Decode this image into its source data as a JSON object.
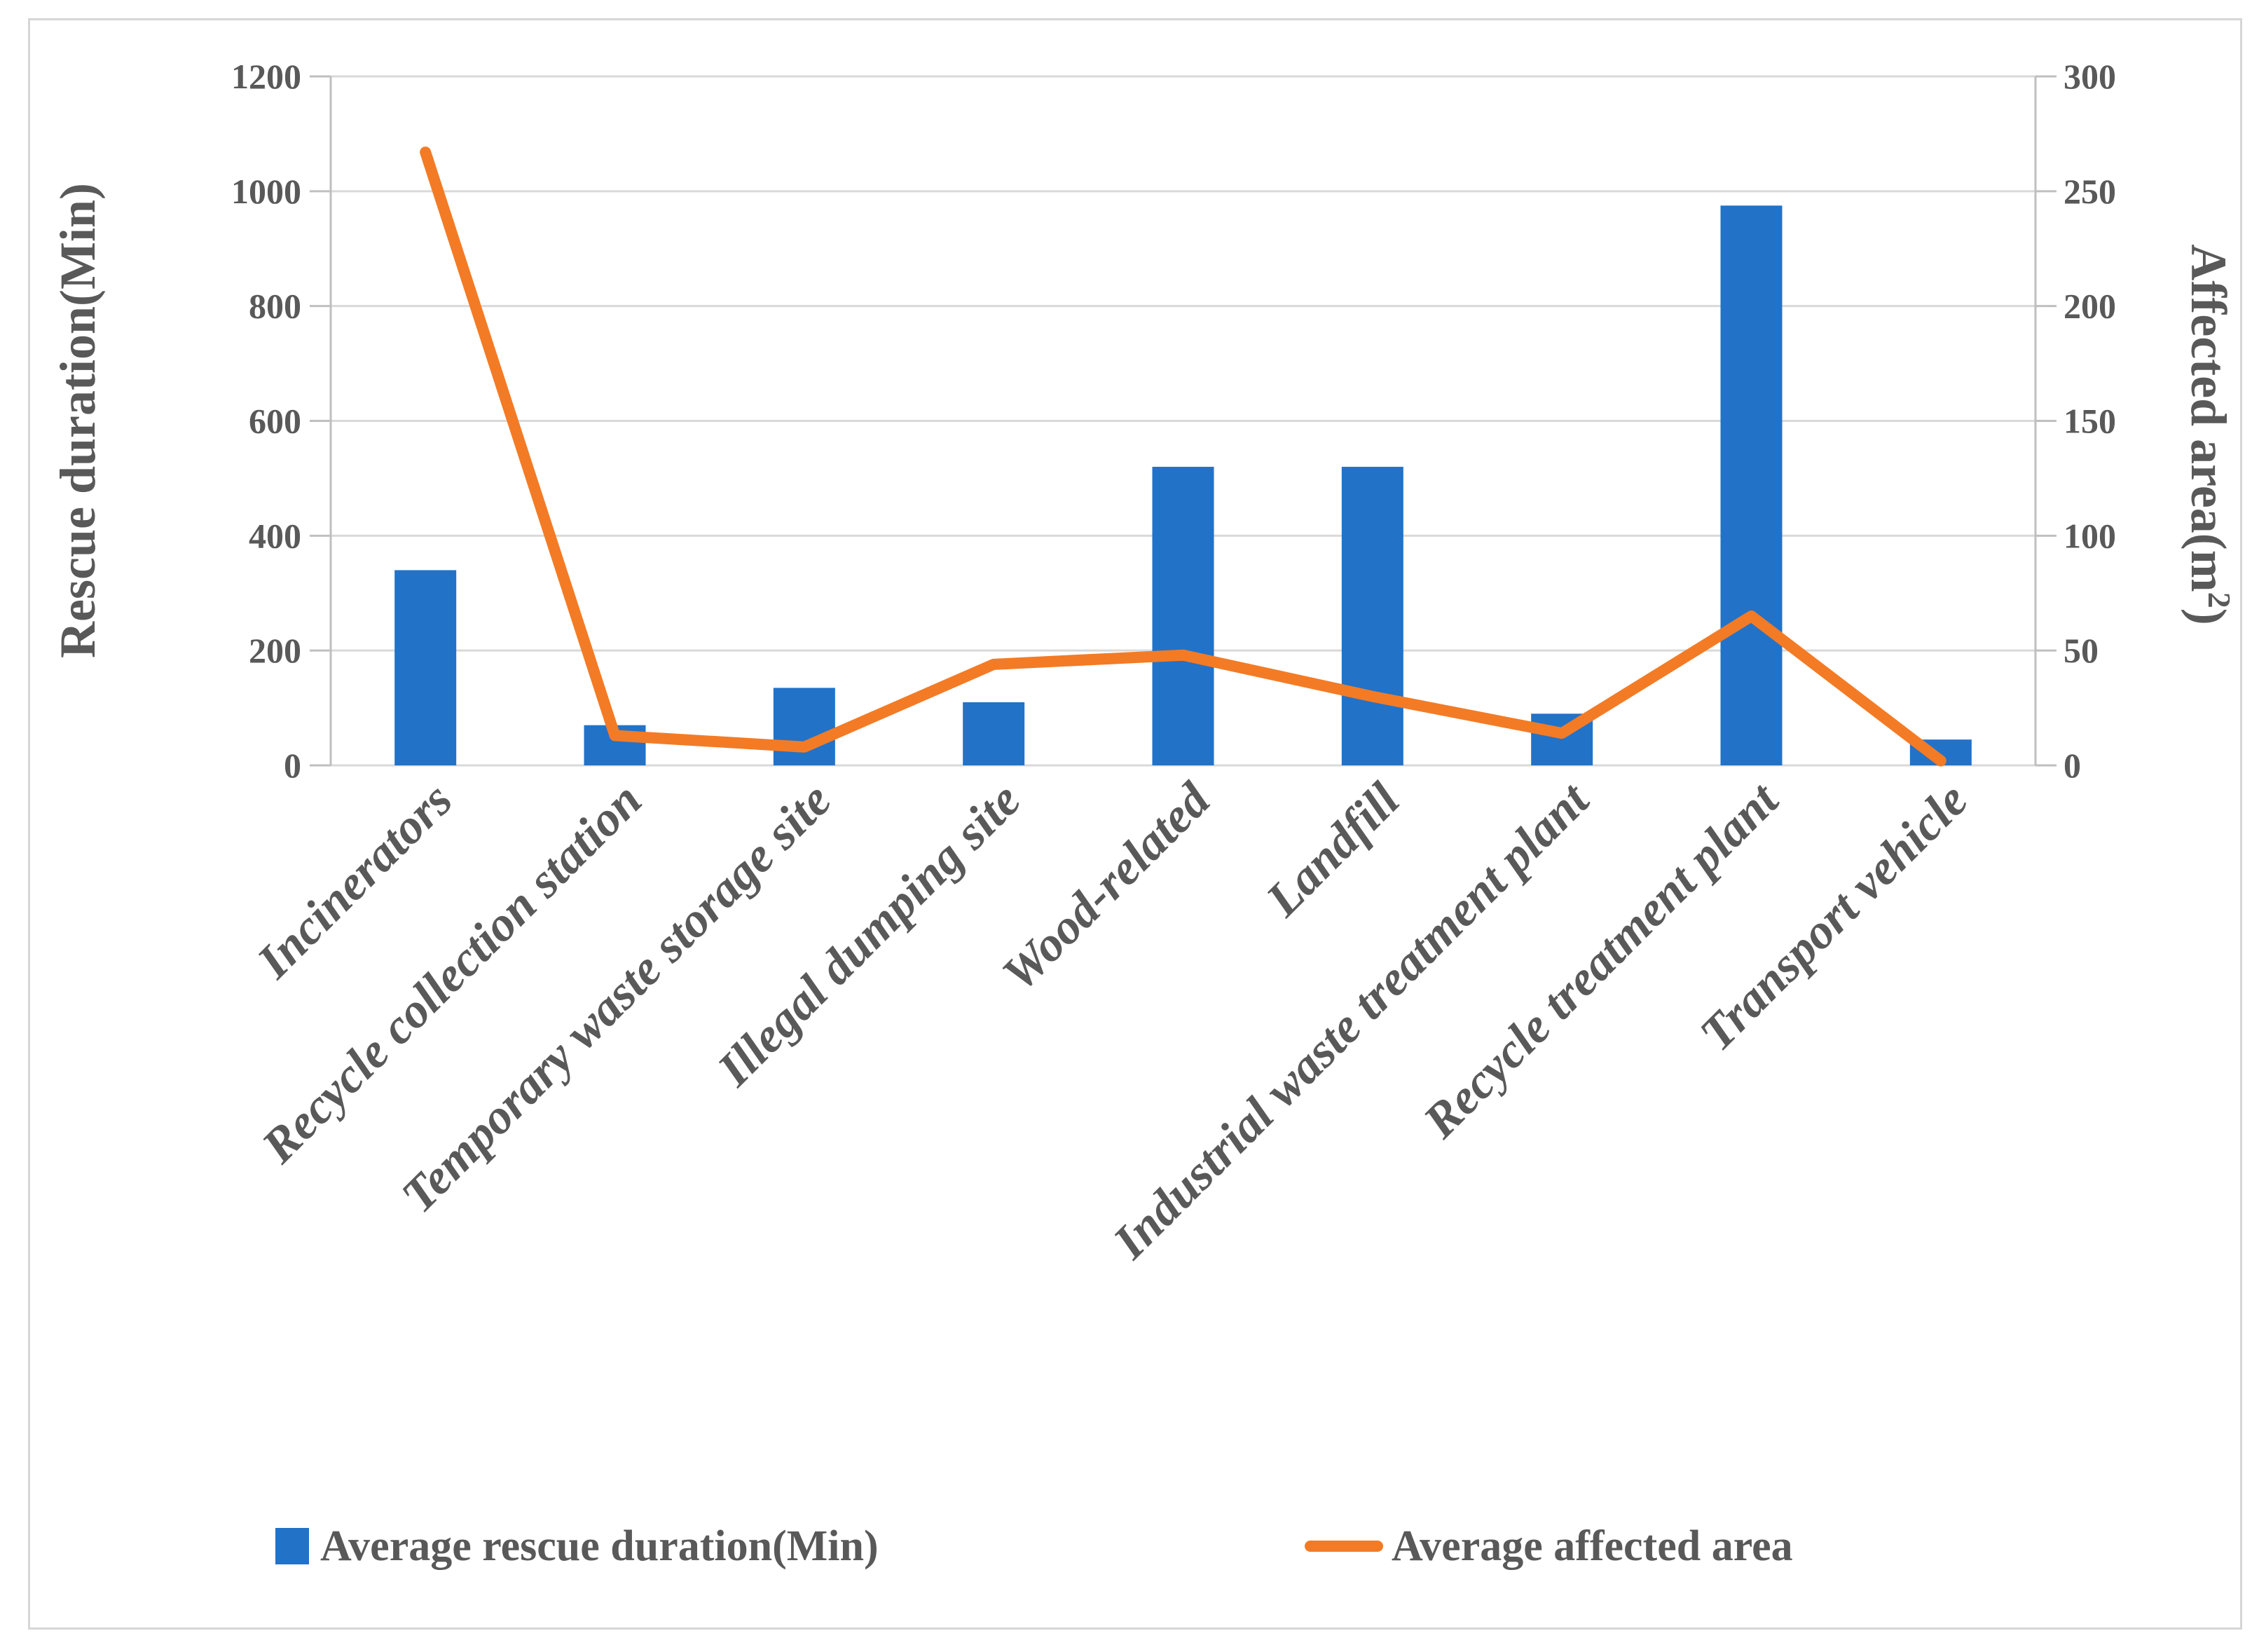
{
  "styles": {
    "text_color": "#595959",
    "grid_color": "#D9D9D9",
    "axis_line_color": "#BFBFBF",
    "frame_border_color": "#D6D6D6",
    "bar_color": "#2272C8",
    "line_color": "#F37B25",
    "background": "#FFFFFF"
  },
  "chart_data": {
    "type": "combo",
    "title": "",
    "categories": [
      "Incinerators",
      "Recycle collection station",
      "Temporary waste storage site",
      "Illegal dumping site",
      "Wood-related",
      "Landfill",
      "Industrial waste treatment plant",
      "Recycle treatment plant",
      "Transport vehicle"
    ],
    "series": [
      {
        "name": "Average rescue duration(Min)",
        "type": "bar",
        "axis": "left",
        "color": "#2272C8",
        "values": [
          340,
          70,
          135,
          110,
          520,
          520,
          90,
          975,
          45
        ]
      },
      {
        "name": "Average affected area",
        "type": "line",
        "axis": "right",
        "color": "#F37B25",
        "values": [
          267,
          13,
          8,
          44,
          48,
          30,
          14,
          65,
          2
        ]
      }
    ],
    "left_axis": {
      "title": "Rescue duration(Min)",
      "min": 0,
      "max": 1200,
      "step": 200,
      "ticks": [
        "0",
        "200",
        "400",
        "600",
        "800",
        "1000",
        "1200"
      ]
    },
    "right_axis": {
      "title_pre": "Affected area(m",
      "title_sup": "2",
      "title_post": ")",
      "min": 0,
      "max": 300,
      "step": 50,
      "ticks": [
        "0",
        "50",
        "100",
        "150",
        "200",
        "250",
        "300"
      ]
    },
    "legend": {
      "position": "bottom",
      "items": [
        "Average rescue duration(Min)",
        "Average affected area"
      ]
    },
    "grid": true
  }
}
